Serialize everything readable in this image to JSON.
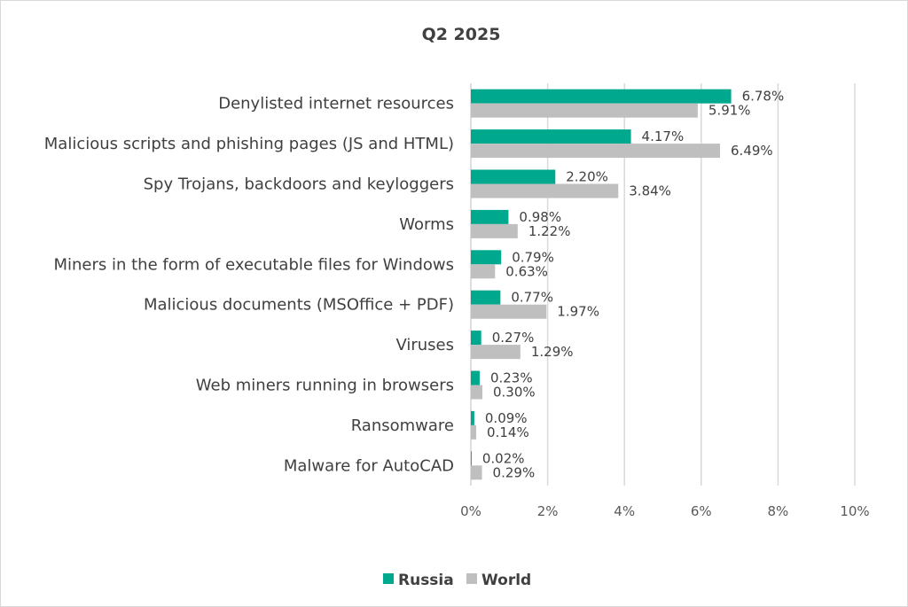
{
  "chart_data": {
    "type": "bar",
    "orientation": "horizontal",
    "title": "Q2 2025",
    "categories": [
      "Denylisted internet resources",
      "Malicious scripts and phishing pages (JS and HTML)",
      "Spy Trojans, backdoors and keyloggers",
      "Worms",
      "Miners in the form of executable files for Windows",
      "Malicious documents (MSOffice + PDF)",
      "Viruses",
      "Web miners running in browsers",
      "Ransomware",
      "Malware for AutoCAD"
    ],
    "series": [
      {
        "name": "Russia",
        "color": "#00a88e",
        "values": [
          6.78,
          4.17,
          2.2,
          0.98,
          0.79,
          0.77,
          0.27,
          0.23,
          0.09,
          0.02
        ],
        "labels": [
          "6.78%",
          "4.17%",
          "2.20%",
          "0.98%",
          "0.79%",
          "0.77%",
          "0.27%",
          "0.23%",
          "0.09%",
          "0.02%"
        ]
      },
      {
        "name": "World",
        "color": "#bfbfbf",
        "values": [
          5.91,
          6.49,
          3.84,
          1.22,
          0.63,
          1.97,
          1.29,
          0.3,
          0.14,
          0.29
        ],
        "labels": [
          "5.91%",
          "6.49%",
          "3.84%",
          "1.22%",
          "0.63%",
          "1.97%",
          "1.29%",
          "0.30%",
          "0.14%",
          "0.29%"
        ]
      }
    ],
    "xlim": [
      0,
      10
    ],
    "xticks": [
      0,
      2,
      4,
      6,
      8,
      10
    ],
    "xtick_labels": [
      "0%",
      "2%",
      "4%",
      "6%",
      "8%",
      "10%"
    ],
    "grid": "vertical",
    "legend_position": "bottom",
    "gridline_color": "#d9d9d9"
  }
}
